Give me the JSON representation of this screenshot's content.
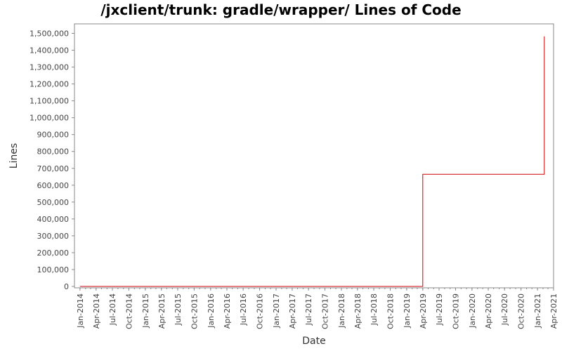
{
  "chart_data": {
    "type": "line",
    "title": "/jxclient/trunk: gradle/wrapper/ Lines of Code",
    "xlabel": "Date",
    "ylabel": "Lines",
    "x_ticks": [
      "Jan-2014",
      "Apr-2014",
      "Jul-2014",
      "Oct-2014",
      "Jan-2015",
      "Apr-2015",
      "Jul-2015",
      "Oct-2015",
      "Jan-2016",
      "Apr-2016",
      "Jul-2016",
      "Oct-2016",
      "Jan-2017",
      "Apr-2017",
      "Jul-2017",
      "Oct-2017",
      "Jan-2018",
      "Apr-2018",
      "Jul-2018",
      "Oct-2018",
      "Jan-2019",
      "Apr-2019",
      "Jul-2019",
      "Oct-2019",
      "Jan-2020",
      "Apr-2020",
      "Jul-2020",
      "Oct-2020",
      "Jan-2021",
      "Apr-2021"
    ],
    "y_ticks": [
      "0",
      "100,000",
      "200,000",
      "300,000",
      "400,000",
      "500,000",
      "600,000",
      "700,000",
      "800,000",
      "900,000",
      "1,000,000",
      "1,100,000",
      "1,200,000",
      "1,300,000",
      "1,400,000",
      "1,500,000"
    ],
    "xlim": [
      "2013-12-01",
      "2021-04-01"
    ],
    "ylim": [
      0,
      1550000
    ],
    "grid": false,
    "series": [
      {
        "color": "#cc0000",
        "points": [
          [
            "2014-01-01",
            0
          ],
          [
            "2019-04-01",
            0
          ],
          [
            "2019-04-01",
            665000
          ],
          [
            "2021-02-08",
            665000
          ],
          [
            "2021-02-08",
            1482000
          ]
        ]
      }
    ]
  }
}
